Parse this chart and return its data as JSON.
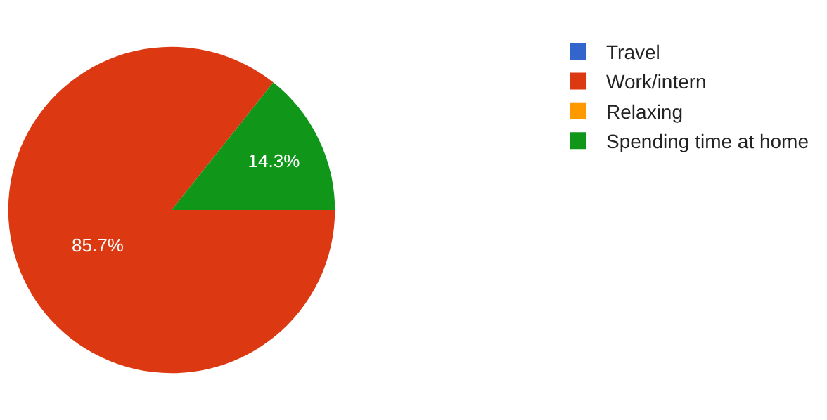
{
  "chart_data": {
    "type": "pie",
    "categories": [
      "Travel",
      "Work/intern",
      "Relaxing",
      "Spending time at home"
    ],
    "values": [
      0,
      85.7,
      0,
      14.3
    ],
    "colors": [
      "#3366cc",
      "#dc3912",
      "#ff9900",
      "#109618"
    ],
    "value_labels": [
      null,
      "85.7%",
      null,
      "14.3%"
    ],
    "legend": "top right"
  }
}
